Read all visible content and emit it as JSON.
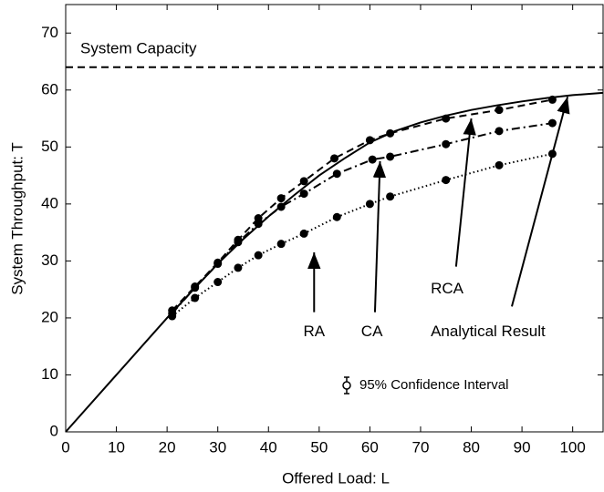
{
  "chart_data": {
    "type": "line",
    "xlabel": "Offered Load: L",
    "ylabel": "System Throughput: T",
    "xlim": [
      0,
      106
    ],
    "ylim": [
      0,
      75
    ],
    "xticks": [
      0,
      10,
      20,
      30,
      40,
      50,
      60,
      70,
      80,
      90,
      100
    ],
    "yticks": [
      0,
      10,
      20,
      30,
      40,
      50,
      60,
      70
    ],
    "capacity": {
      "label": "System Capacity",
      "value": 64
    },
    "legend_note": "95% Confidence Interval",
    "series": [
      {
        "name": "Analytical Result",
        "color": "#000000",
        "style": "solid",
        "markers": false,
        "x": [
          0,
          10,
          20,
          25,
          30,
          35,
          40,
          45,
          50,
          55,
          60,
          65,
          70,
          75,
          80,
          85,
          90,
          95,
          100,
          106
        ],
        "values": [
          0,
          10,
          20,
          24.8,
          29.5,
          33.8,
          37.8,
          41.5,
          45,
          48,
          50.8,
          52.8,
          54.3,
          55.5,
          56.5,
          57.3,
          58,
          58.6,
          59.1,
          59.5
        ]
      },
      {
        "name": "RCA",
        "color": "#000000",
        "style": "dashed",
        "markers": true,
        "x": [
          21,
          25.5,
          30,
          34,
          38,
          42.5,
          47,
          53,
          60,
          64,
          75,
          85.5,
          96
        ],
        "values": [
          21.3,
          25.5,
          29.7,
          33.7,
          37.5,
          41,
          44,
          48,
          51.2,
          52.4,
          55,
          56.5,
          58.3
        ]
      },
      {
        "name": "CA",
        "color": "#000000",
        "style": "dashdot",
        "markers": true,
        "x": [
          21,
          25.5,
          30,
          34,
          38,
          42.5,
          47,
          53.5,
          60.5,
          64,
          75,
          85.5,
          96
        ],
        "values": [
          20.8,
          25.3,
          29.5,
          33.3,
          36.5,
          39.5,
          41.8,
          45.3,
          47.8,
          48.3,
          50.5,
          52.8,
          54.2
        ]
      },
      {
        "name": "RA",
        "color": "#000000",
        "style": "dotted",
        "markers": true,
        "x": [
          21,
          25.5,
          30,
          34,
          38,
          42.5,
          47,
          53.5,
          60,
          64,
          75,
          85.5,
          96
        ],
        "values": [
          20.3,
          23.5,
          26.3,
          28.8,
          31,
          33,
          34.8,
          37.7,
          40,
          41.3,
          44.2,
          46.8,
          48.8
        ]
      }
    ]
  }
}
